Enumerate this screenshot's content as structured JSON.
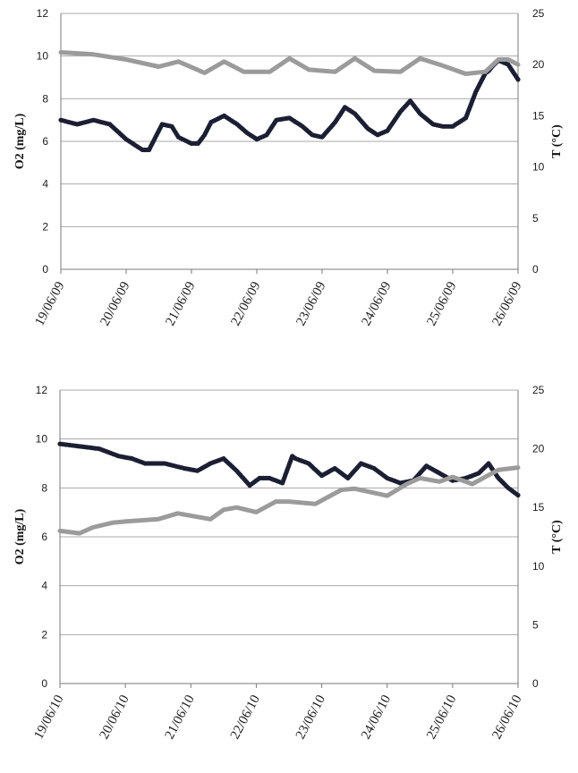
{
  "chart_data": [
    {
      "type": "line",
      "ylabel": "O2 (mg/L)",
      "y2label": "T (°C)",
      "ylim": [
        0,
        12
      ],
      "y2lim": [
        0,
        25
      ],
      "yticks": [
        "0",
        "2",
        "4",
        "6",
        "8",
        "10",
        "12"
      ],
      "y2ticks": [
        "0",
        "5",
        "10",
        "15",
        "20",
        "25"
      ],
      "categories": [
        "19/06/09",
        "20/06/09",
        "21/06/09",
        "22/06/09",
        "23/06/09",
        "24/06/09",
        "25/06/09",
        "26/06/09"
      ],
      "grid": true,
      "series": [
        {
          "axis": "left",
          "color": "#1c1f33",
          "style": "dots",
          "x": [
            0,
            0.25,
            0.5,
            0.75,
            1.0,
            1.15,
            1.25,
            1.35,
            1.45,
            1.55,
            1.7,
            1.8,
            2.0,
            2.1,
            2.2,
            2.3,
            2.5,
            2.7,
            2.85,
            3.0,
            3.15,
            3.3,
            3.5,
            3.7,
            3.85,
            4.0,
            4.2,
            4.35,
            4.5,
            4.7,
            4.85,
            5.0,
            5.2,
            5.35,
            5.5,
            5.7,
            5.85,
            6.0,
            6.2,
            6.35,
            6.5,
            6.55,
            6.6,
            6.7,
            6.85,
            7.0
          ],
          "y": [
            7.0,
            6.8,
            7.0,
            6.8,
            6.1,
            5.8,
            5.6,
            5.6,
            6.2,
            6.8,
            6.7,
            6.2,
            5.9,
            5.9,
            6.3,
            6.9,
            7.2,
            6.8,
            6.4,
            6.1,
            6.3,
            7.0,
            7.1,
            6.7,
            6.3,
            6.2,
            6.9,
            7.6,
            7.3,
            6.6,
            6.3,
            6.5,
            7.4,
            7.9,
            7.3,
            6.8,
            6.7,
            6.7,
            7.1,
            8.3,
            9.2,
            9.3,
            9.5,
            9.8,
            9.6,
            8.9
          ],
          "name": ""
        },
        {
          "axis": "right",
          "color": "#9b9b9b",
          "style": "line",
          "x": [
            0,
            0.5,
            1.0,
            1.5,
            1.8,
            2.2,
            2.5,
            2.8,
            3.2,
            3.5,
            3.8,
            4.2,
            4.5,
            4.8,
            5.2,
            5.5,
            5.8,
            6.2,
            6.5,
            6.7,
            6.85,
            7.0
          ],
          "y": [
            21.2,
            21.0,
            20.5,
            19.8,
            20.3,
            19.2,
            20.3,
            19.3,
            19.3,
            20.6,
            19.5,
            19.3,
            20.6,
            19.4,
            19.3,
            20.6,
            20.0,
            19.1,
            19.3,
            20.5,
            20.5,
            20.0
          ],
          "name": ""
        }
      ]
    },
    {
      "type": "line",
      "ylabel": "O2 (mg/L)",
      "y2label": "T (°C)",
      "ylim": [
        0,
        12
      ],
      "y2lim": [
        0,
        25
      ],
      "yticks": [
        "0",
        "2",
        "4",
        "6",
        "8",
        "10",
        "12"
      ],
      "y2ticks": [
        "0",
        "5",
        "10",
        "15",
        "20",
        "25"
      ],
      "categories": [
        "19/06/10",
        "20/06/10",
        "21/06/10",
        "22/06/10",
        "23/06/10",
        "24/06/10",
        "25/06/10",
        "26/06/10"
      ],
      "grid": true,
      "series": [
        {
          "axis": "left",
          "color": "#1c1f33",
          "style": "dots",
          "x": [
            0,
            0.3,
            0.6,
            0.9,
            1.1,
            1.3,
            1.6,
            1.9,
            2.1,
            2.3,
            2.5,
            2.7,
            2.9,
            3.05,
            3.2,
            3.4,
            3.55,
            3.6,
            3.8,
            4.0,
            4.2,
            4.4,
            4.6,
            4.8,
            5.0,
            5.2,
            5.4,
            5.6,
            5.8,
            6.0,
            6.2,
            6.4,
            6.55,
            6.7,
            6.85,
            7.0
          ],
          "y": [
            9.8,
            9.7,
            9.6,
            9.3,
            9.2,
            9.0,
            9.0,
            8.8,
            8.7,
            9.0,
            9.2,
            8.7,
            8.1,
            8.4,
            8.4,
            8.2,
            9.3,
            9.2,
            9.0,
            8.5,
            8.8,
            8.4,
            9.0,
            8.8,
            8.4,
            8.2,
            8.3,
            8.9,
            8.6,
            8.3,
            8.4,
            8.6,
            9.0,
            8.4,
            8.0,
            7.7
          ],
          "name": ""
        },
        {
          "axis": "right",
          "color": "#9b9b9b",
          "style": "line",
          "x": [
            0,
            0.3,
            0.5,
            0.8,
            1.0,
            1.5,
            1.8,
            2.0,
            2.3,
            2.5,
            2.7,
            3.0,
            3.3,
            3.5,
            3.9,
            4.3,
            4.5,
            5.0,
            5.3,
            5.5,
            5.8,
            6.0,
            6.3,
            6.5,
            6.7,
            7.0
          ],
          "y": [
            13.0,
            12.8,
            13.3,
            13.7,
            13.8,
            14.0,
            14.5,
            14.3,
            14.0,
            14.8,
            15.0,
            14.6,
            15.5,
            15.5,
            15.3,
            16.5,
            16.6,
            16.0,
            17.0,
            17.5,
            17.2,
            17.6,
            17.0,
            17.6,
            18.2,
            18.4
          ],
          "name": ""
        }
      ]
    }
  ]
}
